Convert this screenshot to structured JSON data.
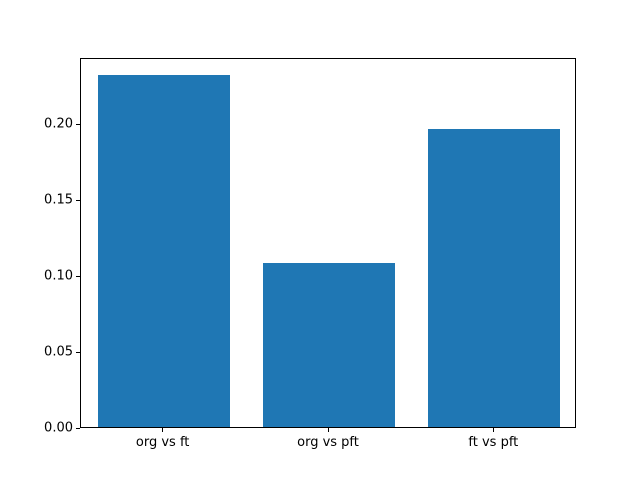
{
  "chart_data": {
    "type": "bar",
    "categories": [
      "org vs ft",
      "org vs pft",
      "ft vs pft"
    ],
    "values": [
      0.232,
      0.108,
      0.196
    ],
    "title": "",
    "xlabel": "",
    "ylabel": "",
    "ylim": [
      0,
      0.2436
    ],
    "yticks": [
      0.0,
      0.05,
      0.1,
      0.15,
      0.2
    ],
    "ytick_labels": [
      "0.00",
      "0.05",
      "0.10",
      "0.15",
      "0.20"
    ],
    "bar_color": "#1f77b4",
    "background_color": "#ffffff",
    "frame_color": "#000000",
    "grid": false,
    "legend": false,
    "bar_width_fraction": 0.8
  }
}
